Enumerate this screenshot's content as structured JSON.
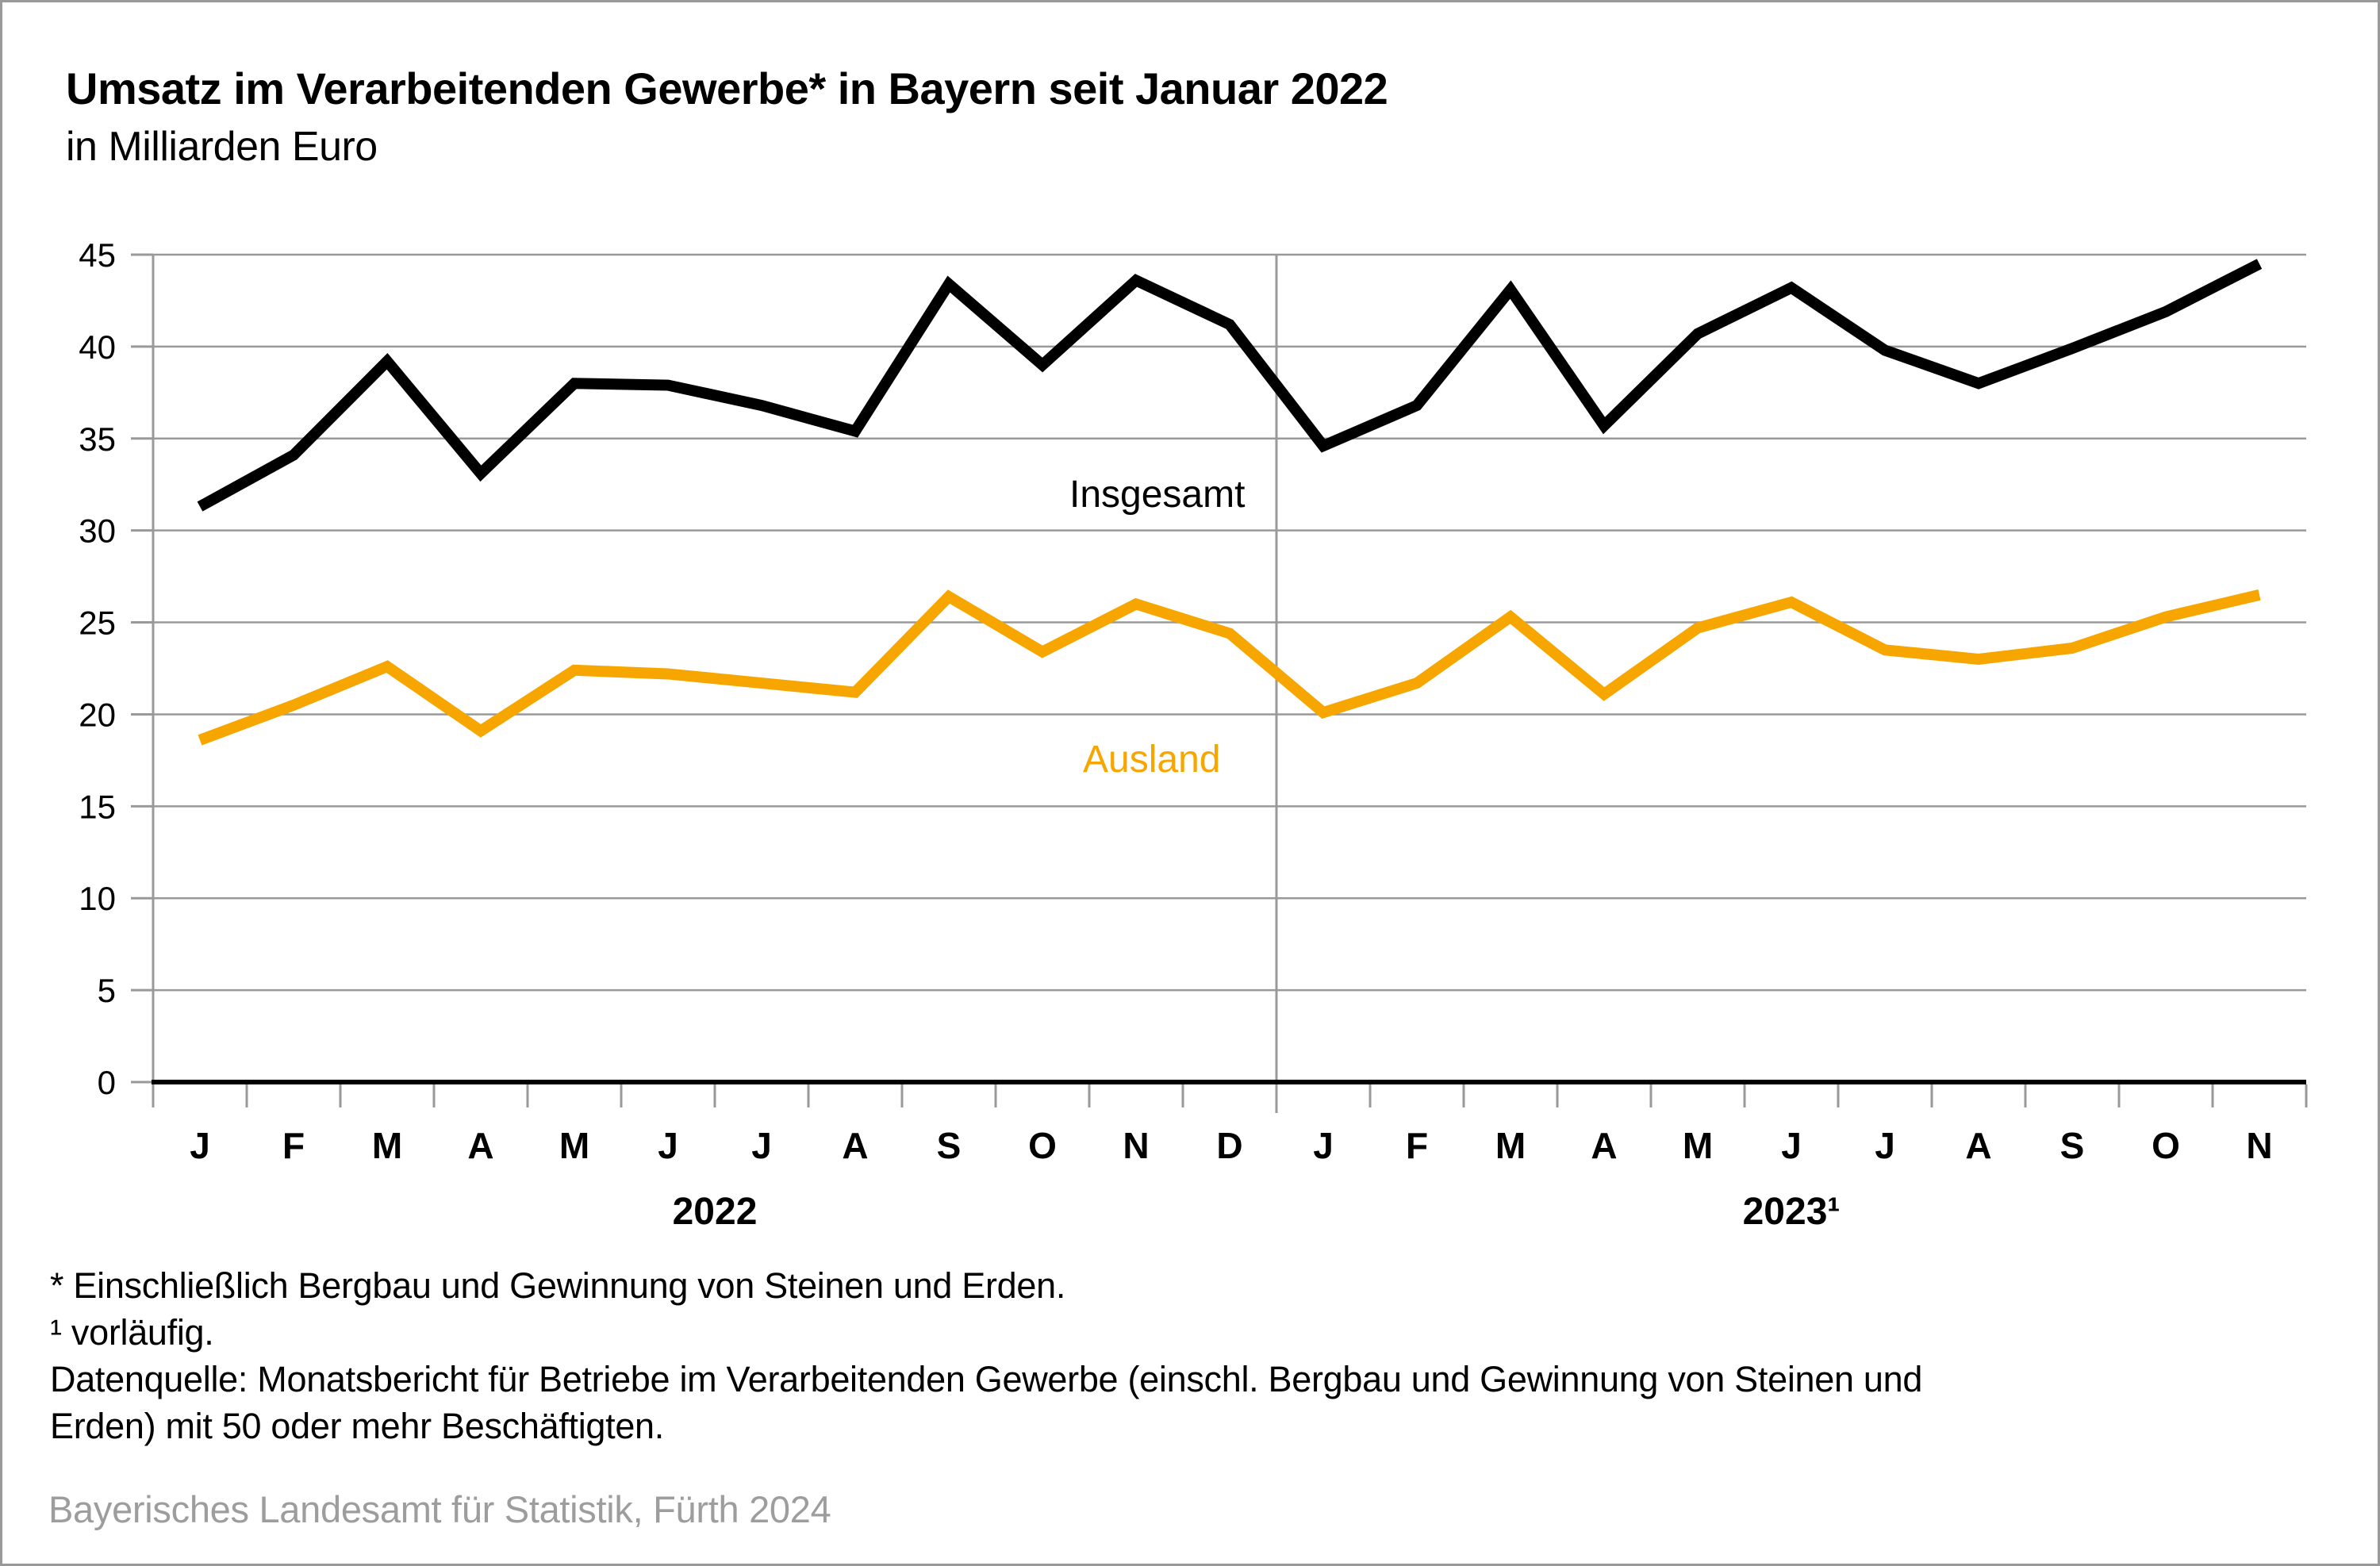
{
  "header": {
    "title": "Umsatz im Verarbeitenden Gewerbe* in Bayern seit Januar 2022",
    "subtitle": "in Milliarden Euro"
  },
  "chart_data": {
    "type": "line",
    "title": "Umsatz im Verarbeitenden Gewerbe* in Bayern seit Januar 2022",
    "subtitle": "in Milliarden Euro",
    "unit": "Milliarden Euro",
    "ylim": [
      0,
      45
    ],
    "ytick_step": 5,
    "grid": true,
    "grid_color": "#999999",
    "axis_color": "#000000",
    "x_groups": [
      {
        "year": "2022",
        "months": [
          "J",
          "F",
          "M",
          "A",
          "M",
          "J",
          "J",
          "A",
          "S",
          "O",
          "N",
          "D"
        ]
      },
      {
        "year": "2023¹",
        "months": [
          "J",
          "F",
          "M",
          "A",
          "M",
          "J",
          "J",
          "A",
          "S",
          "O",
          "N"
        ]
      }
    ],
    "series": [
      {
        "name": "Insgesamt",
        "color": "#000000",
        "label_x": 1345,
        "label_y": 636,
        "values": [
          31.3,
          34.1,
          39.2,
          33.1,
          38.0,
          37.9,
          36.8,
          35.4,
          43.4,
          39.0,
          43.6,
          41.2,
          34.6,
          36.8,
          43.1,
          35.7,
          40.7,
          43.2,
          39.8,
          38.0,
          39.9,
          41.9,
          44.5
        ]
      },
      {
        "name": "Ausland",
        "color": "#F7A600",
        "label_x": 1362,
        "label_y": 970,
        "values": [
          18.6,
          20.5,
          22.6,
          19.1,
          22.4,
          22.2,
          21.7,
          21.2,
          26.4,
          23.4,
          26.0,
          24.4,
          20.1,
          21.7,
          25.3,
          21.1,
          24.7,
          26.1,
          23.5,
          23.0,
          23.6,
          25.3,
          26.5
        ]
      }
    ],
    "legend_position": "inline-labels"
  },
  "footnotes": {
    "lines": [
      "* Einschließlich Bergbau und Gewinnung von Steinen und Erden.",
      "¹ vorläufig.",
      "Datenquelle: Monatsbericht für Betriebe im Verarbeitenden Gewerbe (einschl. Bergbau und Gewinnung von Steinen und",
      "Erden) mit 50 oder mehr Beschäftigten."
    ]
  },
  "source": "Bayerisches Landesamt für Statistik, Fürth 2024"
}
